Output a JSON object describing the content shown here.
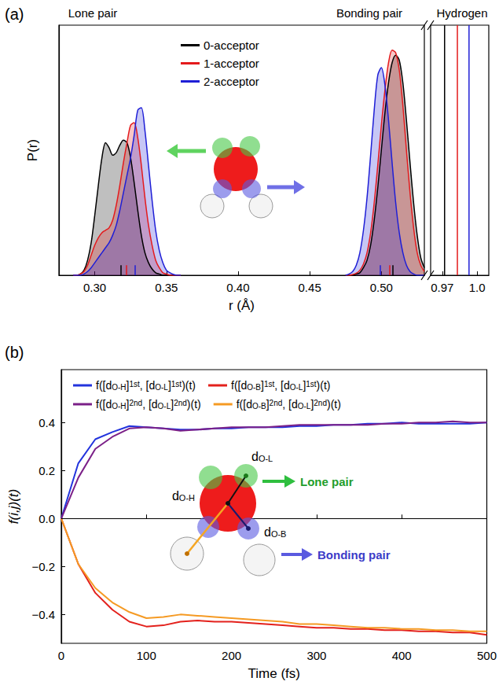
{
  "chart_data": [
    {
      "type": "line",
      "panel": "(a)",
      "section_labels": [
        "Lone pair",
        "Bonding pair",
        "Hydrogen"
      ],
      "xlabel": "r (Å)",
      "ylabel": "P(r)",
      "xlim": [
        0.275,
        0.53
      ],
      "xticks": [
        {
          "value": 0.3,
          "label": "0.30"
        },
        0.35,
        {
          "value": 0.4,
          "label": "0.40"
        },
        0.45,
        {
          "value": 0.5,
          "label": "0.50"
        }
      ],
      "xlim_hydrogen": [
        0.96,
        1.01
      ],
      "xticks_hydrogen": [
        0.97,
        {
          "value": 1,
          "label": "1.0"
        }
      ],
      "ylim": [
        0,
        1
      ],
      "yticks": [],
      "tick_labels": "x",
      "grid": false,
      "legend": "top",
      "lone_pair_x": [
        0.285,
        0.2875,
        0.29,
        0.2925,
        0.295,
        0.2975,
        0.3,
        0.3025,
        0.305,
        0.3075,
        0.31,
        0.3125,
        0.315,
        0.3175,
        0.32,
        0.3225,
        0.325,
        0.3275,
        0.33,
        0.3325,
        0.335,
        0.3375,
        0.34,
        0.3425,
        0.345,
        0.3475,
        0.35,
        0.3525,
        0.355,
        0.3575,
        0.36
      ],
      "bonding_pair_x": [
        0.475,
        0.4775,
        0.48,
        0.4825,
        0.485,
        0.4875,
        0.49,
        0.4925,
        0.495,
        0.4975,
        0.5,
        0.5025,
        0.505,
        0.5075,
        0.51,
        0.5125,
        0.515,
        0.5175,
        0.52,
        0.5225,
        0.525,
        0.5275,
        0.53
      ],
      "series": [
        {
          "name": "0-acceptor",
          "color": "#000000",
          "lone_pair": [
            0,
            0,
            0.005,
            0.02,
            0.06,
            0.13,
            0.24,
            0.36,
            0.47,
            0.53,
            0.51,
            0.48,
            0.49,
            0.52,
            0.54,
            0.53,
            0.47,
            0.37,
            0.26,
            0.16,
            0.09,
            0.05,
            0.025,
            0.01,
            0.005,
            0,
            0,
            0,
            0,
            0,
            0
          ],
          "bonding_pair": [
            0,
            0,
            0,
            0.005,
            0.01,
            0.03,
            0.06,
            0.12,
            0.22,
            0.35,
            0.5,
            0.65,
            0.77,
            0.85,
            0.88,
            0.86,
            0.77,
            0.62,
            0.45,
            0.29,
            0.16,
            0.07,
            0.03
          ],
          "mean_lone_pair": 0.318,
          "mean_bonding_pair": 0.508,
          "hydrogen": 0.972
        },
        {
          "name": "1-acceptor",
          "color": "#e41a1c",
          "lone_pair": [
            0,
            0,
            0.005,
            0.015,
            0.04,
            0.08,
            0.12,
            0.15,
            0.17,
            0.18,
            0.19,
            0.22,
            0.28,
            0.36,
            0.45,
            0.53,
            0.6,
            0.61,
            0.55,
            0.44,
            0.31,
            0.2,
            0.12,
            0.06,
            0.03,
            0.01,
            0.005,
            0,
            0,
            0,
            0
          ],
          "bonding_pair": [
            0,
            0,
            0.003,
            0.008,
            0.02,
            0.045,
            0.09,
            0.17,
            0.29,
            0.44,
            0.6,
            0.74,
            0.85,
            0.9,
            0.89,
            0.82,
            0.68,
            0.5,
            0.33,
            0.19,
            0.09,
            0.04,
            0.015
          ],
          "mean_lone_pair": 0.322,
          "mean_bonding_pair": 0.506,
          "hydrogen": 0.983
        },
        {
          "name": "2-acceptor",
          "color": "#1f1fd6",
          "lone_pair": [
            0,
            0,
            0,
            0.005,
            0.015,
            0.03,
            0.05,
            0.07,
            0.09,
            0.11,
            0.13,
            0.16,
            0.2,
            0.26,
            0.33,
            0.4,
            0.47,
            0.56,
            0.66,
            0.67,
            0.58,
            0.44,
            0.3,
            0.18,
            0.1,
            0.05,
            0.02,
            0.01,
            0.003,
            0,
            0
          ],
          "bonding_pair": [
            0,
            0.005,
            0.015,
            0.04,
            0.09,
            0.18,
            0.31,
            0.48,
            0.66,
            0.8,
            0.83,
            0.76,
            0.62,
            0.45,
            0.29,
            0.17,
            0.09,
            0.04,
            0.015,
            0.005,
            0,
            0,
            0
          ],
          "mean_lone_pair": 0.328,
          "mean_bonding_pair": 0.499,
          "hydrogen": 0.993
        }
      ]
    },
    {
      "type": "line",
      "panel": "(b)",
      "xlabel": "Time (fs)",
      "ylabel": "f(i,j)(t)",
      "xlim": [
        0,
        500
      ],
      "xticks": [
        0,
        100,
        200,
        300,
        400,
        500
      ],
      "ylim": [
        -0.52,
        0.62
      ],
      "yticks": [
        {
          "value": -0.4,
          "label": "−0.4"
        },
        {
          "value": -0.2,
          "label": "−0.2"
        },
        {
          "value": 0,
          "label": "0.0"
        },
        0.2,
        0.4
      ],
      "hline": 0,
      "grid": false,
      "legend": "top",
      "x": [
        0,
        20,
        40,
        60,
        80,
        100,
        120,
        140,
        160,
        180,
        200,
        220,
        240,
        260,
        280,
        300,
        320,
        340,
        360,
        380,
        400,
        420,
        440,
        460,
        480,
        500
      ],
      "series": [
        {
          "name": "f([dO-H]1st, [dO-L]1st)(t)",
          "color": "#2233dd",
          "values": [
            0,
            0.23,
            0.33,
            0.36,
            0.385,
            0.38,
            0.375,
            0.37,
            0.37,
            0.375,
            0.375,
            0.38,
            0.38,
            0.38,
            0.385,
            0.385,
            0.39,
            0.39,
            0.395,
            0.395,
            0.4,
            0.395,
            0.395,
            0.395,
            0.395,
            0.4
          ]
        },
        {
          "name": "f([dO-H]2nd, [dO-L]2nd)(t)",
          "color": "#7b2088",
          "values": [
            0,
            0.17,
            0.29,
            0.34,
            0.375,
            0.38,
            0.375,
            0.365,
            0.37,
            0.375,
            0.38,
            0.38,
            0.38,
            0.385,
            0.39,
            0.39,
            0.39,
            0.39,
            0.39,
            0.395,
            0.395,
            0.4,
            0.4,
            0.405,
            0.4,
            0.4
          ]
        },
        {
          "name": "f([dO-B]1st, [dO-L]1st)(t)",
          "color": "#e3211c",
          "values": [
            0,
            -0.19,
            -0.31,
            -0.38,
            -0.43,
            -0.45,
            -0.445,
            -0.43,
            -0.425,
            -0.43,
            -0.43,
            -0.435,
            -0.44,
            -0.445,
            -0.45,
            -0.455,
            -0.455,
            -0.46,
            -0.46,
            -0.465,
            -0.465,
            -0.47,
            -0.47,
            -0.475,
            -0.475,
            -0.485
          ]
        },
        {
          "name": "f([dO-B]2nd, [dO-L]2nd)(t)",
          "color": "#f59a23",
          "values": [
            0,
            -0.19,
            -0.29,
            -0.35,
            -0.39,
            -0.415,
            -0.41,
            -0.4,
            -0.405,
            -0.41,
            -0.415,
            -0.42,
            -0.425,
            -0.43,
            -0.44,
            -0.44,
            -0.445,
            -0.45,
            -0.455,
            -0.455,
            -0.46,
            -0.46,
            -0.465,
            -0.465,
            -0.47,
            -0.47
          ]
        }
      ],
      "annotations": {
        "lone_pair": "Lone pair",
        "bonding_pair": "Bonding pair",
        "d_O_L": "dO-L",
        "d_O_B": "dO-B",
        "d_O_H": "dO-H"
      }
    }
  ]
}
